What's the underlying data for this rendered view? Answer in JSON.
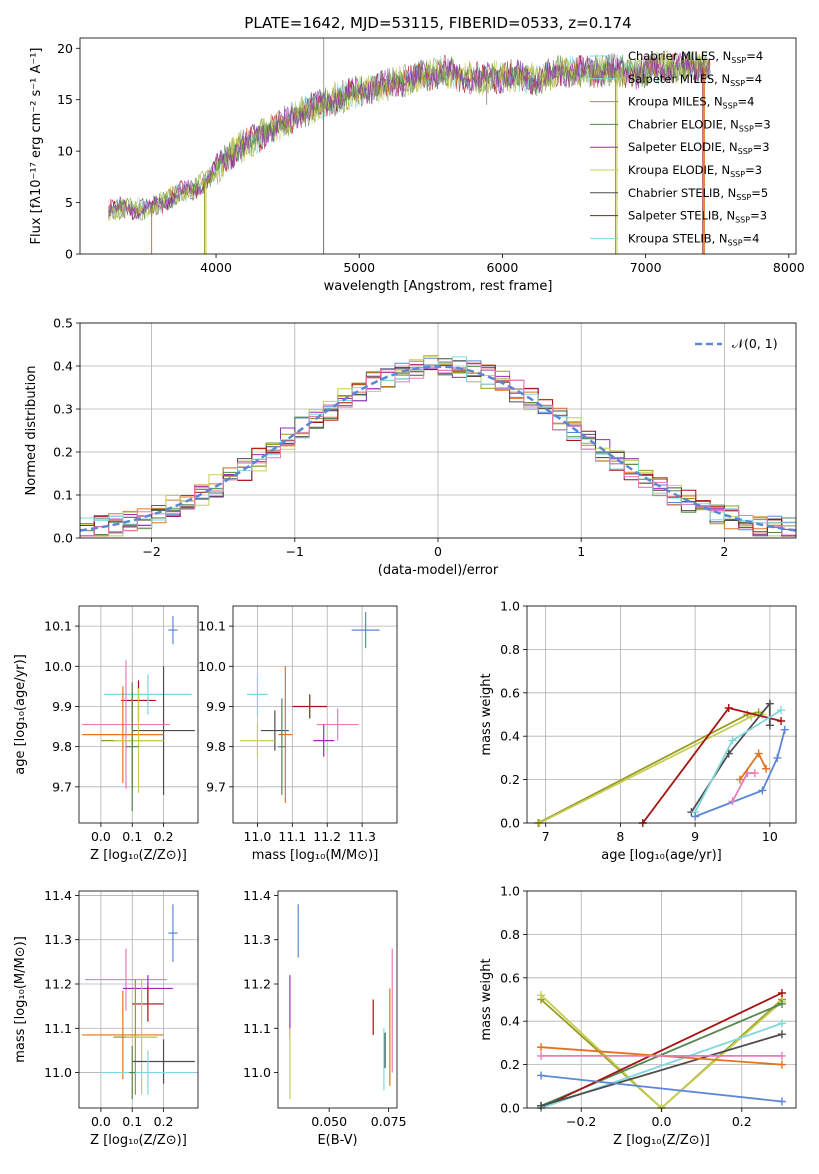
{
  "colors": [
    "#5b87d6",
    "#e2731f",
    "#9b9a21",
    "#55874f",
    "#9a2cb0",
    "#c5cf55",
    "#4d4d4d",
    "#a61111",
    "#82d6de",
    "#e87cba"
  ],
  "chart_data": [
    {
      "id": "spectrum",
      "type": "line",
      "title": "PLATE=1642, MJD=53115, FIBERID=0533, z=0.174",
      "xlabel": "wavelength [Angstrom, rest frame]",
      "ylabel": "Flux [fλ10⁻¹⁷ erg cm⁻² s⁻¹ A⁻¹]",
      "xlim": [
        3050,
        8050
      ],
      "ylim": [
        0,
        21
      ],
      "xticks": [
        4000,
        5000,
        6000,
        7000,
        8000
      ],
      "yticks": [
        0,
        5,
        10,
        15,
        20
      ],
      "legend_position": "top-right",
      "series": [
        {
          "name": "Chabrier MILES, N_SSP=4",
          "color": "#82d6de"
        },
        {
          "name": "Salpeter MILES, N_SSP=4",
          "color": "#82d6de"
        },
        {
          "name": "Kroupa MILES, N_SSP=4",
          "color": "#9b9a21"
        },
        {
          "name": "Chabrier ELODIE, N_SSP=3",
          "color": "#55874f"
        },
        {
          "name": "Salpeter ELODIE, N_SSP=3",
          "color": "#9a2cb0"
        },
        {
          "name": "Kroupa ELODIE, N_SSP=3",
          "color": "#c5cf55"
        },
        {
          "name": "Chabrier STELIB, N_SSP=5",
          "color": "#4d4d4d"
        },
        {
          "name": "Salpeter STELIB, N_SSP=3",
          "color": "#a61111"
        },
        {
          "name": "Kroupa STELIB, N_SSP=4",
          "color": "#82d6de"
        }
      ],
      "data_curve": {
        "x": [
          3250,
          3350,
          3450,
          3550,
          3650,
          3750,
          3850,
          3950,
          4050,
          4150,
          4250,
          4350,
          4450,
          4550,
          4650,
          4750,
          4850,
          4950,
          5050,
          5150,
          5250,
          5350,
          5450,
          5550,
          5650,
          5750,
          5850,
          5950,
          6050,
          6150,
          6250,
          6350,
          6450,
          6550,
          6650,
          6750,
          6850,
          6950,
          7050,
          7150,
          7250,
          7350,
          7450
        ],
        "y": [
          4.2,
          4.5,
          4.3,
          4.5,
          5.2,
          6.0,
          6.3,
          7.4,
          9.0,
          10.2,
          11.0,
          11.9,
          12.5,
          13.3,
          14.0,
          14.6,
          15.2,
          15.6,
          16.0,
          16.3,
          16.6,
          17.0,
          17.4,
          17.6,
          17.6,
          17.2,
          17.0,
          17.2,
          17.3,
          17.2,
          16.9,
          17.6,
          17.8,
          17.7,
          17.8,
          17.9,
          17.7,
          17.5,
          18.0,
          18.2,
          18.1,
          18.2,
          18.0
        ]
      },
      "cutoffs": [
        {
          "x": 3550,
          "color": "#e2731f"
        },
        {
          "x": 3920,
          "color": "#9b9a21"
        },
        {
          "x": 3930,
          "color": "#c5cf55"
        },
        {
          "x": 6790,
          "color": "#9b9a21"
        },
        {
          "x": 6800,
          "color": "#c5cf55"
        },
        {
          "x": 7400,
          "color": "#a61111"
        },
        {
          "x": 7410,
          "color": "#e2731f"
        }
      ]
    },
    {
      "id": "residuals",
      "type": "histogram",
      "xlabel": "(data-model)/error",
      "ylabel": "Normed distribution",
      "xlim": [
        -2.5,
        2.5
      ],
      "ylim": [
        0,
        0.5
      ],
      "xticks": [
        -2,
        -1,
        0,
        1,
        2
      ],
      "yticks": [
        0.0,
        0.1,
        0.2,
        0.3,
        0.4,
        0.5
      ],
      "grid": true,
      "legend_position": "top-right",
      "legend": [
        {
          "name": "𝒩(0, 1)",
          "color": "#5b87d6",
          "style": "dashed"
        }
      ],
      "bin_edges_start": -2.5,
      "bin_width": 0.1,
      "base_curve": "normal(0,1)"
    },
    {
      "id": "age-vs-Z",
      "type": "errorbar",
      "xlabel": "Z [log₁₀(Z/Z⊙)]",
      "ylabel": "age  [log₁₀(age/yr)]",
      "xlim": [
        -0.07,
        0.31
      ],
      "ylim": [
        9.61,
        10.15
      ],
      "xticks": [
        0.0,
        0.1,
        0.2
      ],
      "yticks": [
        9.7,
        9.8,
        9.9,
        10.0,
        10.1
      ],
      "grid": true,
      "points": [
        {
          "x": 0.23,
          "y": 10.09,
          "xerr": 0.015,
          "yerr": 0.035,
          "color": "#5b87d6"
        },
        {
          "x": 0.12,
          "y": 9.915,
          "xerr": 0.055,
          "yerr": 0.05,
          "color": "#a61111"
        },
        {
          "x": 0.15,
          "y": 9.93,
          "xerr": 0.14,
          "yerr": 0.05,
          "color": "#82d6de"
        },
        {
          "x": 0.2,
          "y": 9.84,
          "xerr": 0.1,
          "yerr": 0.16,
          "color": "#4d4d4d"
        },
        {
          "x": 0.08,
          "y": 9.855,
          "xerr": 0.14,
          "yerr": 0.16,
          "color": "#e87cba"
        },
        {
          "x": 0.07,
          "y": 9.83,
          "xerr": 0.13,
          "yerr": 0.12,
          "color": "#e2731f"
        },
        {
          "x": 0.1,
          "y": 9.815,
          "xerr": 0.1,
          "yerr": 0.12,
          "color": "#9b9a21"
        },
        {
          "x": 0.12,
          "y": 9.815,
          "xerr": 0.08,
          "yerr": 0.13,
          "color": "#c5cf55"
        },
        {
          "x": 0.1,
          "y": 9.8,
          "xerr": 0.02,
          "yerr": 0.16,
          "color": "#55874f"
        }
      ]
    },
    {
      "id": "age-vs-mass",
      "type": "errorbar",
      "xlabel": "mass [log₁₀(M/M⊙)]",
      "ylabel": "",
      "xlim": [
        10.93,
        11.4
      ],
      "ylim": [
        9.61,
        10.15
      ],
      "xticks": [
        11.0,
        11.1,
        11.2,
        11.3
      ],
      "yticks": [
        9.7,
        9.8,
        9.9,
        10.0,
        10.1
      ],
      "grid": true,
      "points": [
        {
          "x": 11.31,
          "y": 10.09,
          "xerr": 0.04,
          "yerr": 0.045,
          "color": "#5b87d6"
        },
        {
          "x": 11.15,
          "y": 9.9,
          "xerr": 0.05,
          "yerr": 0.03,
          "color": "#a61111"
        },
        {
          "x": 11.0,
          "y": 9.93,
          "xerr": 0.03,
          "yerr": 0.05,
          "color": "#82d6de"
        },
        {
          "x": 11.05,
          "y": 9.84,
          "xerr": 0.04,
          "yerr": 0.05,
          "color": "#4d4d4d"
        },
        {
          "x": 11.23,
          "y": 9.855,
          "xerr": 0.06,
          "yerr": 0.04,
          "color": "#e87cba"
        },
        {
          "x": 11.08,
          "y": 9.83,
          "xerr": 0.02,
          "yerr": 0.17,
          "color": "#e2731f"
        },
        {
          "x": 11.19,
          "y": 9.815,
          "xerr": 0.03,
          "yerr": 0.04,
          "color": "#9a2cb0"
        },
        {
          "x": 11.0,
          "y": 9.815,
          "xerr": 0.05,
          "yerr": 0.04,
          "color": "#c5cf55"
        },
        {
          "x": 11.07,
          "y": 9.8,
          "xerr": 0.01,
          "yerr": 0.12,
          "color": "#55874f"
        }
      ]
    },
    {
      "id": "weight-vs-age",
      "type": "line",
      "xlabel": "age  [log₁₀(age/yr)]",
      "ylabel": "mass weight",
      "xlim": [
        6.75,
        10.35
      ],
      "ylim": [
        0,
        1.0
      ],
      "xticks": [
        7,
        8,
        9,
        10
      ],
      "yticks": [
        0.0,
        0.2,
        0.4,
        0.6,
        0.8,
        1.0
      ],
      "grid": true,
      "series": [
        {
          "color": "#9b9a21",
          "x": [
            6.9,
            9.7,
            9.85
          ],
          "y": [
            0.0,
            0.5,
            0.51
          ]
        },
        {
          "color": "#c5cf55",
          "x": [
            6.92,
            9.75,
            9.9
          ],
          "y": [
            0.0,
            0.49,
            0.5
          ]
        },
        {
          "color": "#a61111",
          "x": [
            8.3,
            9.45,
            10.15
          ],
          "y": [
            0.0,
            0.53,
            0.47
          ]
        },
        {
          "color": "#4d4d4d",
          "x": [
            8.95,
            9.45,
            10.0,
            10.0
          ],
          "y": [
            0.05,
            0.32,
            0.55,
            0.45
          ]
        },
        {
          "color": "#82d6de",
          "x": [
            9.0,
            9.5,
            10.15
          ],
          "y": [
            0.05,
            0.38,
            0.52
          ]
        },
        {
          "color": "#5b87d6",
          "x": [
            9.0,
            9.9,
            10.1,
            10.2
          ],
          "y": [
            0.03,
            0.15,
            0.3,
            0.43
          ]
        },
        {
          "color": "#e87cba",
          "x": [
            9.5,
            9.7,
            9.8
          ],
          "y": [
            0.1,
            0.23,
            0.23
          ]
        },
        {
          "color": "#e2731f",
          "x": [
            9.6,
            9.85,
            9.95
          ],
          "y": [
            0.2,
            0.32,
            0.25
          ]
        }
      ]
    },
    {
      "id": "mass-vs-Z",
      "type": "errorbar",
      "xlabel": "Z [log₁₀(Z/Z⊙)]",
      "ylabel": "mass [log₁₀(M/M⊙)]",
      "xlim": [
        -0.07,
        0.31
      ],
      "ylim": [
        10.92,
        11.41
      ],
      "xticks": [
        0.0,
        0.1,
        0.2
      ],
      "yticks": [
        11.0,
        11.1,
        11.2,
        11.3,
        11.4
      ],
      "grid": true,
      "points": [
        {
          "x": 0.23,
          "y": 11.315,
          "xerr": 0.015,
          "yerr": 0.065,
          "color": "#5b87d6"
        },
        {
          "x": 0.08,
          "y": 11.21,
          "xerr": 0.13,
          "yerr": 0.07,
          "color": "#e87cba"
        },
        {
          "x": 0.15,
          "y": 11.19,
          "xerr": 0.08,
          "yerr": 0.03,
          "color": "#9a2cb0"
        },
        {
          "x": 0.15,
          "y": 11.155,
          "xerr": 0.05,
          "yerr": 0.04,
          "color": "#a61111"
        },
        {
          "x": 0.07,
          "y": 11.085,
          "xerr": 0.13,
          "yerr": 0.1,
          "color": "#e2731f"
        },
        {
          "x": 0.11,
          "y": 11.08,
          "xerr": 0.07,
          "yerr": 0.13,
          "color": "#9b9a21"
        },
        {
          "x": 0.13,
          "y": 11.08,
          "xerr": 0.05,
          "yerr": 0.13,
          "color": "#c5cf55"
        },
        {
          "x": 0.2,
          "y": 11.025,
          "xerr": 0.1,
          "yerr": 0.05,
          "color": "#4d4d4d"
        },
        {
          "x": 0.15,
          "y": 11.0,
          "xerr": 0.15,
          "yerr": 0.05,
          "color": "#82d6de"
        },
        {
          "x": 0.1,
          "y": 11.0,
          "xerr": 0.01,
          "yerr": 0.06,
          "color": "#55874f"
        }
      ]
    },
    {
      "id": "mass-vs-ebv",
      "type": "errorbar",
      "xlabel": "E(B-V)",
      "ylabel": "",
      "xlim": [
        0.0285,
        0.0785
      ],
      "ylim": [
        10.92,
        11.41
      ],
      "xticks": [
        0.05,
        0.075
      ],
      "tick_labels": [
        "0.050",
        "0.075"
      ],
      "yticks": [
        11.0,
        11.1,
        11.2,
        11.3,
        11.4
      ],
      "grid": false,
      "points": [
        {
          "x": 0.037,
          "y": 11.32,
          "yerr": 0.06,
          "color": "#5b87d6"
        },
        {
          "x": 0.0335,
          "y": 11.15,
          "yerr": 0.07,
          "color": "#9a2cb0"
        },
        {
          "x": 0.0335,
          "y": 11.02,
          "yerr": 0.08,
          "color": "#c5cf55"
        },
        {
          "x": 0.0685,
          "y": 11.125,
          "yerr": 0.04,
          "color": "#a61111"
        },
        {
          "x": 0.0755,
          "y": 11.08,
          "yerr": 0.11,
          "color": "#e2731f"
        },
        {
          "x": 0.0765,
          "y": 11.14,
          "yerr": 0.14,
          "color": "#e87cba"
        },
        {
          "x": 0.073,
          "y": 11.03,
          "yerr": 0.07,
          "color": "#82d6de"
        },
        {
          "x": 0.0735,
          "y": 11.05,
          "yerr": 0.04,
          "color": "#4d4d4d"
        }
      ]
    },
    {
      "id": "weight-vs-Z",
      "type": "line",
      "xlabel": "Z [log₁₀(Z/Z⊙)]",
      "ylabel": "mass weight",
      "xlim": [
        -0.335,
        0.335
      ],
      "ylim": [
        0,
        1.0
      ],
      "xticks": [
        -0.2,
        0.0,
        0.2
      ],
      "tick_labels": [
        "−0.2",
        "0.0",
        "0.2"
      ],
      "yticks": [
        0.0,
        0.2,
        0.4,
        0.6,
        0.8,
        1.0
      ],
      "grid": true,
      "series": [
        {
          "color": "#9b9a21",
          "x": [
            -0.3,
            0.0,
            0.3
          ],
          "y": [
            0.5,
            0.0,
            0.5
          ]
        },
        {
          "color": "#c5cf55",
          "x": [
            -0.3,
            0.0,
            0.3
          ],
          "y": [
            0.52,
            0.0,
            0.49
          ]
        },
        {
          "color": "#55874f",
          "x": [
            -0.3,
            0.3
          ],
          "y": [
            0.01,
            0.48
          ]
        },
        {
          "color": "#a61111",
          "x": [
            -0.3,
            0.3
          ],
          "y": [
            0.0,
            0.53
          ]
        },
        {
          "color": "#82d6de",
          "x": [
            -0.3,
            0.3
          ],
          "y": [
            0.0,
            0.39
          ]
        },
        {
          "color": "#4d4d4d",
          "x": [
            -0.3,
            0.3
          ],
          "y": [
            0.01,
            0.34
          ]
        },
        {
          "color": "#e2731f",
          "x": [
            -0.3,
            0.3
          ],
          "y": [
            0.28,
            0.2
          ]
        },
        {
          "color": "#e87cba",
          "x": [
            -0.3,
            0.3
          ],
          "y": [
            0.24,
            0.24
          ]
        },
        {
          "color": "#5b87d6",
          "x": [
            -0.3,
            0.3
          ],
          "y": [
            0.15,
            0.03
          ]
        }
      ]
    }
  ]
}
